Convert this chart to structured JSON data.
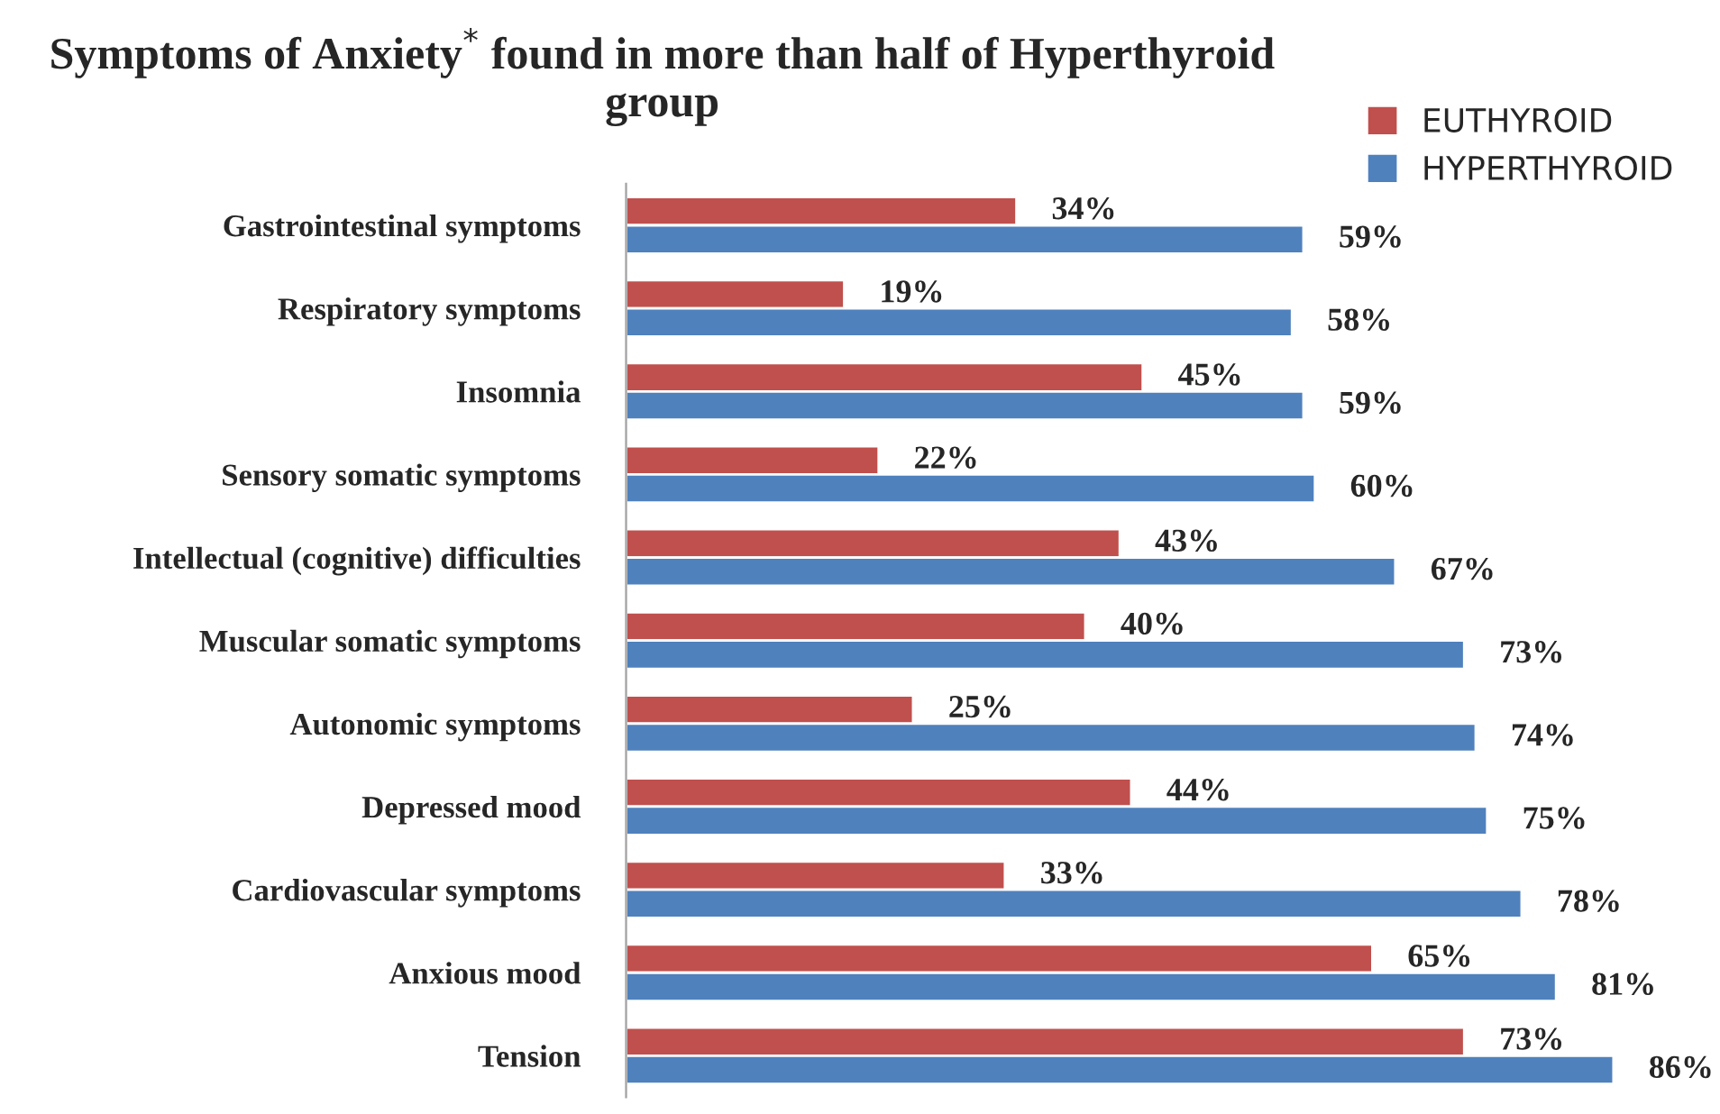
{
  "chart_data": {
    "type": "bar",
    "orientation": "horizontal",
    "title": "Symptoms of Anxiety$^{*}$ found in more than half of Hyperthyroid group",
    "categories": [
      "Gastrointestinal symptoms",
      "Respiratory symptoms",
      "Insomnia",
      "Sensory somatic symptoms",
      "Intellectual (cognitive) difficulties",
      "Muscular somatic symptoms",
      "Autonomic symptoms",
      "Depressed mood",
      "Cardiovascular symptoms",
      "Anxious mood",
      "Tension"
    ],
    "series": [
      {
        "name": "EUTHYROID",
        "color": "#c0504d",
        "values": [
          34,
          19,
          45,
          22,
          43,
          40,
          25,
          44,
          33,
          65,
          73
        ],
        "value_labels": [
          "34%",
          "19%",
          "45%",
          "22%",
          "43%",
          "40%",
          "25%",
          "44%",
          "33%",
          "65%",
          "73%"
        ]
      },
      {
        "name": "HYPERTHYROID",
        "color": "#4f81bd",
        "values": [
          59,
          58,
          59,
          60,
          67,
          73,
          74,
          75,
          78,
          81,
          86
        ],
        "value_labels": [
          "59%",
          "58%",
          "59%",
          "60%",
          "67%",
          "73%",
          "74%",
          "75%",
          "78%",
          "81%",
          "86%"
        ]
      }
    ],
    "legend": "top right",
    "grid": false
  }
}
